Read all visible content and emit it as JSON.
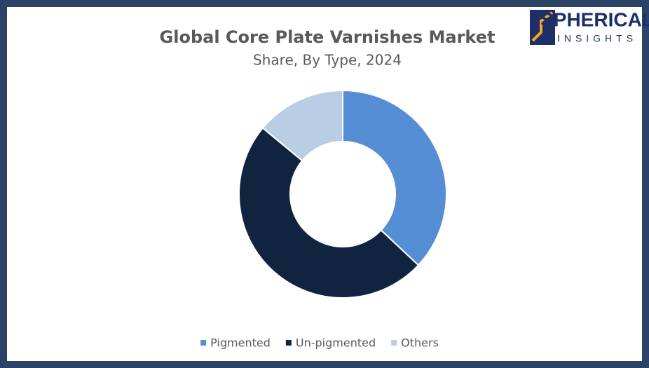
{
  "brand": {
    "name": "SPHERICAL",
    "tagline": "INSIGHTS"
  },
  "chart_data": {
    "type": "donut",
    "title": "Global Core Plate Varnishes Market",
    "subtitle": "Share, By Type, 2024",
    "categories": [
      "Pigmented",
      "Un-pigmented",
      "Others"
    ],
    "values": [
      37,
      49,
      14
    ],
    "colors": [
      "#558ed5",
      "#10233f",
      "#b9cde5"
    ],
    "legend": "bottom"
  }
}
